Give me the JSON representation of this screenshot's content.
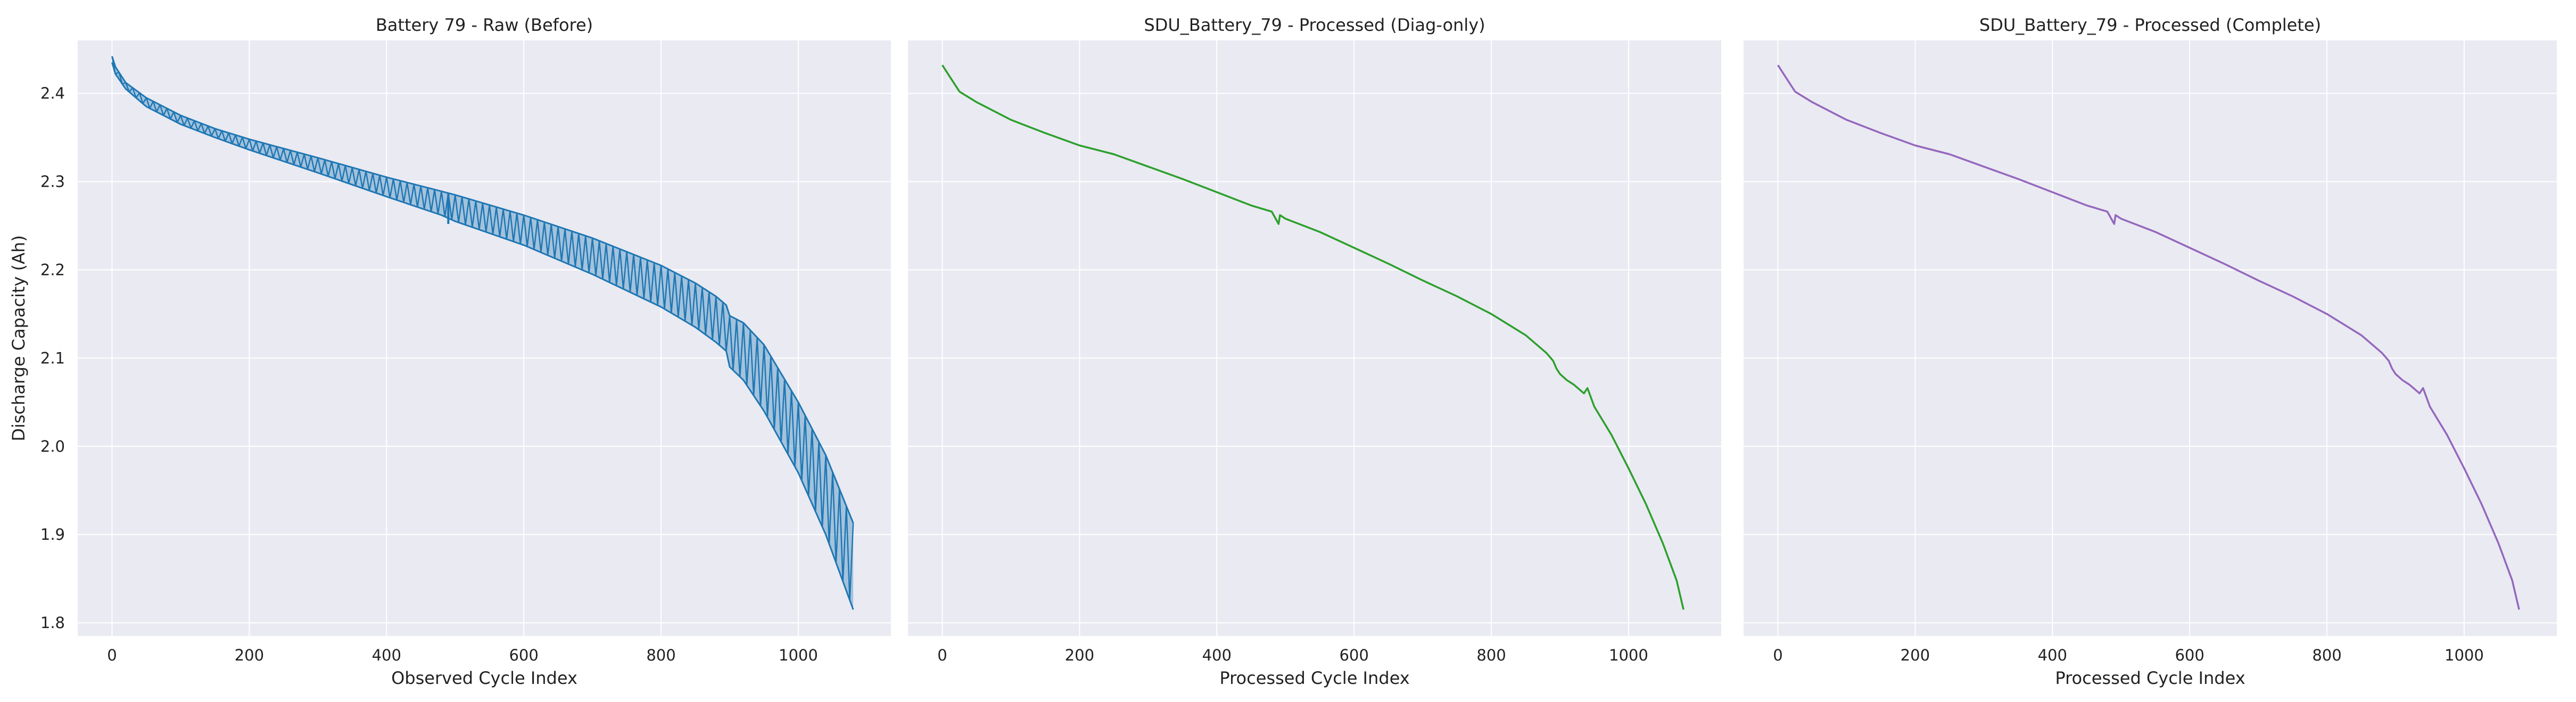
{
  "figure": {
    "background": "#ffffff",
    "panel_background": "#eaeaf2",
    "grid_color": "#ffffff"
  },
  "chart_data": [
    {
      "type": "line",
      "title": "Battery 79 - Raw (Before)",
      "xlabel": "Observed Cycle Index",
      "ylabel": "Discharge Capacity (Ah)",
      "xlim": [
        -50,
        1135
      ],
      "ylim": [
        1.785,
        2.46
      ],
      "xticks": [
        0,
        200,
        400,
        600,
        800,
        1000
      ],
      "yticks": [
        1.8,
        1.9,
        2.0,
        2.1,
        2.2,
        2.3,
        2.4
      ],
      "grid": true,
      "color": "#1f77b4",
      "style": "raw-envelope",
      "series": [
        {
          "role": "upper",
          "x": [
            0,
            5,
            20,
            50,
            100,
            150,
            200,
            300,
            400,
            480,
            500,
            600,
            700,
            800,
            850,
            880,
            895,
            900,
            920,
            950,
            1000,
            1040,
            1080
          ],
          "y": [
            2.442,
            2.43,
            2.412,
            2.395,
            2.375,
            2.36,
            2.348,
            2.327,
            2.305,
            2.289,
            2.285,
            2.262,
            2.236,
            2.205,
            2.185,
            2.17,
            2.16,
            2.148,
            2.14,
            2.115,
            2.05,
            1.99,
            1.913
          ]
        },
        {
          "role": "lower",
          "x": [
            0,
            5,
            20,
            50,
            100,
            150,
            200,
            300,
            400,
            480,
            500,
            600,
            700,
            800,
            850,
            880,
            895,
            900,
            920,
            950,
            1000,
            1040,
            1080
          ],
          "y": [
            2.435,
            2.422,
            2.405,
            2.385,
            2.365,
            2.35,
            2.336,
            2.31,
            2.283,
            2.262,
            2.255,
            2.228,
            2.195,
            2.158,
            2.135,
            2.118,
            2.108,
            2.09,
            2.075,
            2.04,
            1.97,
            1.9,
            1.815
          ]
        }
      ],
      "annotations": [
        {
          "x": 490,
          "y": 2.252,
          "kind": "dip"
        }
      ]
    },
    {
      "type": "line",
      "title": "SDU_Battery_79 - Processed (Diag-only)",
      "xlabel": "Processed Cycle Index",
      "ylabel": "",
      "xlim": [
        -50,
        1135
      ],
      "ylim": [
        1.785,
        2.46
      ],
      "xticks": [
        0,
        200,
        400,
        600,
        800,
        1000
      ],
      "yticks": [
        1.8,
        1.9,
        2.0,
        2.1,
        2.2,
        2.3,
        2.4
      ],
      "grid": true,
      "color": "#2ca02c",
      "series": [
        {
          "x": [
            0,
            10,
            20,
            25,
            50,
            100,
            150,
            200,
            250,
            300,
            350,
            400,
            450,
            480,
            490,
            492,
            500,
            550,
            600,
            650,
            700,
            750,
            800,
            850,
            880,
            890,
            895,
            900,
            910,
            920,
            935,
            940,
            950,
            975,
            1000,
            1025,
            1050,
            1070,
            1080
          ],
          "y": [
            2.432,
            2.42,
            2.408,
            2.402,
            2.39,
            2.37,
            2.355,
            2.341,
            2.331,
            2.317,
            2.303,
            2.288,
            2.273,
            2.266,
            2.252,
            2.262,
            2.258,
            2.243,
            2.225,
            2.207,
            2.188,
            2.17,
            2.15,
            2.126,
            2.106,
            2.097,
            2.088,
            2.082,
            2.075,
            2.07,
            2.06,
            2.066,
            2.045,
            2.013,
            1.975,
            1.935,
            1.89,
            1.848,
            1.815
          ]
        }
      ]
    },
    {
      "type": "line",
      "title": "SDU_Battery_79 - Processed (Complete)",
      "xlabel": "Processed Cycle Index",
      "ylabel": "",
      "xlim": [
        -50,
        1135
      ],
      "ylim": [
        1.785,
        2.46
      ],
      "xticks": [
        0,
        200,
        400,
        600,
        800,
        1000
      ],
      "yticks": [
        1.8,
        1.9,
        2.0,
        2.1,
        2.2,
        2.3,
        2.4
      ],
      "grid": true,
      "color": "#9467bd",
      "series": [
        {
          "x": [
            0,
            10,
            20,
            25,
            50,
            100,
            150,
            200,
            250,
            300,
            350,
            400,
            450,
            480,
            490,
            492,
            500,
            550,
            600,
            650,
            700,
            750,
            800,
            850,
            880,
            890,
            895,
            900,
            910,
            920,
            935,
            940,
            950,
            975,
            1000,
            1025,
            1050,
            1070,
            1080
          ],
          "y": [
            2.432,
            2.42,
            2.408,
            2.402,
            2.39,
            2.37,
            2.355,
            2.341,
            2.331,
            2.317,
            2.303,
            2.288,
            2.273,
            2.266,
            2.252,
            2.262,
            2.258,
            2.243,
            2.225,
            2.207,
            2.188,
            2.17,
            2.15,
            2.126,
            2.106,
            2.097,
            2.088,
            2.082,
            2.075,
            2.07,
            2.06,
            2.066,
            2.045,
            2.013,
            1.975,
            1.935,
            1.89,
            1.848,
            1.815
          ]
        }
      ]
    }
  ]
}
